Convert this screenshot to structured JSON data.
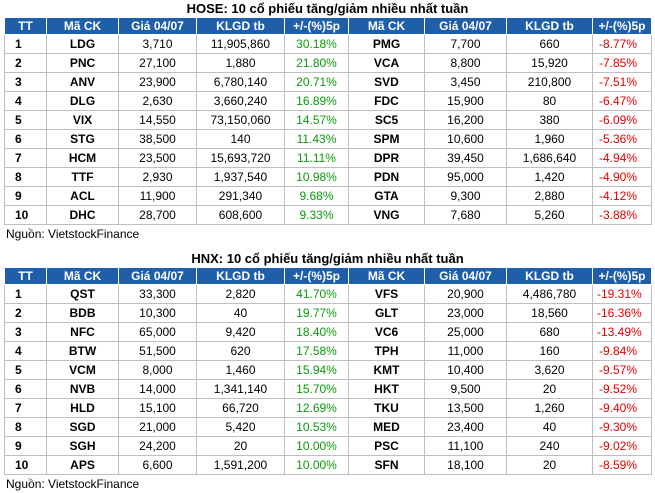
{
  "hose": {
    "title": "HOSE: 10 cổ phiếu tăng/giảm nhiều nhất tuần",
    "headers": [
      "TT",
      "Mã CK",
      "Giá 04/07",
      "KLGD tb",
      "+/-(%)5p",
      "Mã CK",
      "Giá 04/07",
      "KLGD tb",
      "+/-(%)5p"
    ],
    "rows": [
      {
        "tt": "1",
        "ck": "LDG",
        "gia": "3,710",
        "klgd": "11,905,860",
        "pct": "30.18%",
        "ck2": "PMG",
        "gia2": "7,700",
        "klgd2": "660",
        "pct2": "-8.77%"
      },
      {
        "tt": "2",
        "ck": "PNC",
        "gia": "27,100",
        "klgd": "1,880",
        "pct": "21.80%",
        "ck2": "VCA",
        "gia2": "8,800",
        "klgd2": "15,920",
        "pct2": "-7.85%"
      },
      {
        "tt": "3",
        "ck": "ANV",
        "gia": "23,900",
        "klgd": "6,780,140",
        "pct": "20.71%",
        "ck2": "SVD",
        "gia2": "3,450",
        "klgd2": "210,800",
        "pct2": "-7.51%"
      },
      {
        "tt": "4",
        "ck": "DLG",
        "gia": "2,630",
        "klgd": "3,660,240",
        "pct": "16.89%",
        "ck2": "FDC",
        "gia2": "15,900",
        "klgd2": "80",
        "pct2": "-6.47%"
      },
      {
        "tt": "5",
        "ck": "VIX",
        "gia": "14,550",
        "klgd": "73,150,060",
        "pct": "14.57%",
        "ck2": "SC5",
        "gia2": "16,200",
        "klgd2": "380",
        "pct2": "-6.09%"
      },
      {
        "tt": "6",
        "ck": "STG",
        "gia": "38,500",
        "klgd": "140",
        "pct": "11.43%",
        "ck2": "SPM",
        "gia2": "10,600",
        "klgd2": "1,960",
        "pct2": "-5.36%"
      },
      {
        "tt": "7",
        "ck": "HCM",
        "gia": "23,500",
        "klgd": "15,693,720",
        "pct": "11.11%",
        "ck2": "DPR",
        "gia2": "39,450",
        "klgd2": "1,686,640",
        "pct2": "-4.94%"
      },
      {
        "tt": "8",
        "ck": "TTF",
        "gia": "2,930",
        "klgd": "1,937,540",
        "pct": "10.98%",
        "ck2": "PDN",
        "gia2": "95,000",
        "klgd2": "1,420",
        "pct2": "-4.90%"
      },
      {
        "tt": "9",
        "ck": "ACL",
        "gia": "11,900",
        "klgd": "291,340",
        "pct": "9.68%",
        "ck2": "GTA",
        "gia2": "9,300",
        "klgd2": "2,880",
        "pct2": "-4.12%"
      },
      {
        "tt": "10",
        "ck": "DHC",
        "gia": "28,700",
        "klgd": "608,600",
        "pct": "9.33%",
        "ck2": "VNG",
        "gia2": "7,680",
        "klgd2": "5,260",
        "pct2": "-3.88%"
      }
    ],
    "source": "Nguồn: VietstockFinance"
  },
  "hnx": {
    "title": "HNX: 10 cổ phiếu tăng/giảm nhiều nhất tuần",
    "headers": [
      "TT",
      "Mã CK",
      "Giá 04/07",
      "KLGD tb",
      "+/-(%)5p",
      "Mã CK",
      "Giá 04/07",
      "KLGD tb",
      "+/-(%)5p"
    ],
    "rows": [
      {
        "tt": "1",
        "ck": "QST",
        "gia": "33,300",
        "klgd": "2,820",
        "pct": "41.70%",
        "ck2": "VFS",
        "gia2": "20,900",
        "klgd2": "4,486,780",
        "pct2": "-19.31%"
      },
      {
        "tt": "2",
        "ck": "BDB",
        "gia": "10,300",
        "klgd": "40",
        "pct": "19.77%",
        "ck2": "GLT",
        "gia2": "23,000",
        "klgd2": "18,560",
        "pct2": "-16.36%"
      },
      {
        "tt": "3",
        "ck": "NFC",
        "gia": "65,000",
        "klgd": "9,420",
        "pct": "18.40%",
        "ck2": "VC6",
        "gia2": "25,000",
        "klgd2": "680",
        "pct2": "-13.49%"
      },
      {
        "tt": "4",
        "ck": "BTW",
        "gia": "51,500",
        "klgd": "620",
        "pct": "17.58%",
        "ck2": "TPH",
        "gia2": "11,000",
        "klgd2": "160",
        "pct2": "-9.84%"
      },
      {
        "tt": "5",
        "ck": "VCM",
        "gia": "8,000",
        "klgd": "1,460",
        "pct": "15.94%",
        "ck2": "KMT",
        "gia2": "10,400",
        "klgd2": "3,620",
        "pct2": "-9.57%"
      },
      {
        "tt": "6",
        "ck": "NVB",
        "gia": "14,000",
        "klgd": "1,341,140",
        "pct": "15.70%",
        "ck2": "HKT",
        "gia2": "9,500",
        "klgd2": "20",
        "pct2": "-9.52%"
      },
      {
        "tt": "7",
        "ck": "HLD",
        "gia": "15,100",
        "klgd": "66,720",
        "pct": "12.69%",
        "ck2": "TKU",
        "gia2": "13,500",
        "klgd2": "1,260",
        "pct2": "-9.40%"
      },
      {
        "tt": "8",
        "ck": "SGD",
        "gia": "21,000",
        "klgd": "5,420",
        "pct": "10.53%",
        "ck2": "MED",
        "gia2": "23,400",
        "klgd2": "40",
        "pct2": "-9.30%"
      },
      {
        "tt": "9",
        "ck": "SGH",
        "gia": "24,200",
        "klgd": "20",
        "pct": "10.00%",
        "ck2": "PSC",
        "gia2": "11,100",
        "klgd2": "240",
        "pct2": "-9.02%"
      },
      {
        "tt": "10",
        "ck": "APS",
        "gia": "6,600",
        "klgd": "1,591,200",
        "pct": "10.00%",
        "ck2": "SFN",
        "gia2": "18,100",
        "klgd2": "20",
        "pct2": "-8.59%"
      }
    ],
    "source": "Nguồn: VietstockFinance"
  },
  "colors": {
    "header_bg": "#1f5faa",
    "up": "#0a9a0a",
    "down": "#e00000"
  }
}
